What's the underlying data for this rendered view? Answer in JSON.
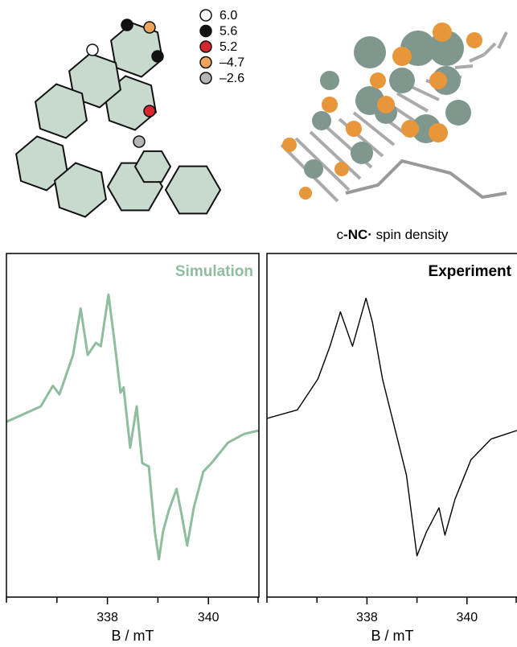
{
  "hyperfine_legend": [
    {
      "label": "6.0",
      "color": "#ffffff"
    },
    {
      "label": "5.6",
      "color": "#111111"
    },
    {
      "label": "5.2",
      "color": "#d7262e"
    },
    {
      "label": "–4.7",
      "color": "#f0a35c"
    },
    {
      "label": "–2.6",
      "color": "#b5b5b5"
    }
  ],
  "caption": {
    "prefix": "c",
    "bold": "-NC·",
    "suffix": " spin density"
  },
  "chart_data": [
    {
      "type": "line",
      "title": "Simulation",
      "title_color": "#8fbd9e",
      "xlabel": "B / mT",
      "x": [
        336.0,
        336.68,
        336.92,
        337.05,
        337.32,
        337.47,
        337.61,
        337.77,
        337.87,
        338.02,
        338.13,
        338.26,
        338.32,
        338.45,
        338.58,
        338.69,
        338.82,
        338.94,
        339.02,
        339.1,
        339.21,
        339.37,
        339.47,
        339.58,
        339.71,
        339.9,
        340.06,
        340.39,
        340.71,
        341.0
      ],
      "series": [
        {
          "name": "Simulation",
          "color": "#8fbd9e",
          "values": [
            0.02,
            0.11,
            0.23,
            0.18,
            0.41,
            0.68,
            0.41,
            0.48,
            0.46,
            0.76,
            0.51,
            0.19,
            0.22,
            -0.13,
            0.11,
            -0.22,
            -0.24,
            -0.62,
            -0.78,
            -0.62,
            -0.5,
            -0.37,
            -0.52,
            -0.7,
            -0.48,
            -0.27,
            -0.22,
            -0.1,
            -0.05,
            -0.03
          ]
        }
      ],
      "xlim": [
        336,
        341
      ],
      "ylim": [
        -1,
        1
      ],
      "xticks": [
        338,
        340
      ],
      "minor_xticks": [
        336,
        337,
        339,
        341
      ]
    },
    {
      "type": "line",
      "title": "Experiment",
      "title_color": "#000000",
      "xlabel": "B / mT",
      "x": [
        336.0,
        336.61,
        337.02,
        337.26,
        337.47,
        337.71,
        337.98,
        338.11,
        338.31,
        338.55,
        338.79,
        339.0,
        339.19,
        339.44,
        339.56,
        339.76,
        340.08,
        340.48,
        341.0
      ],
      "series": [
        {
          "name": "Experiment",
          "color": "#000000",
          "values": [
            0.04,
            0.09,
            0.27,
            0.46,
            0.66,
            0.46,
            0.74,
            0.6,
            0.27,
            -0.01,
            -0.29,
            -0.76,
            -0.62,
            -0.48,
            -0.64,
            -0.43,
            -0.2,
            -0.08,
            -0.03
          ]
        }
      ],
      "xlim": [
        336,
        341
      ],
      "ylim": [
        -1,
        1
      ],
      "xticks": [
        338,
        340
      ],
      "minor_xticks": [
        336,
        337,
        339,
        341
      ]
    }
  ]
}
